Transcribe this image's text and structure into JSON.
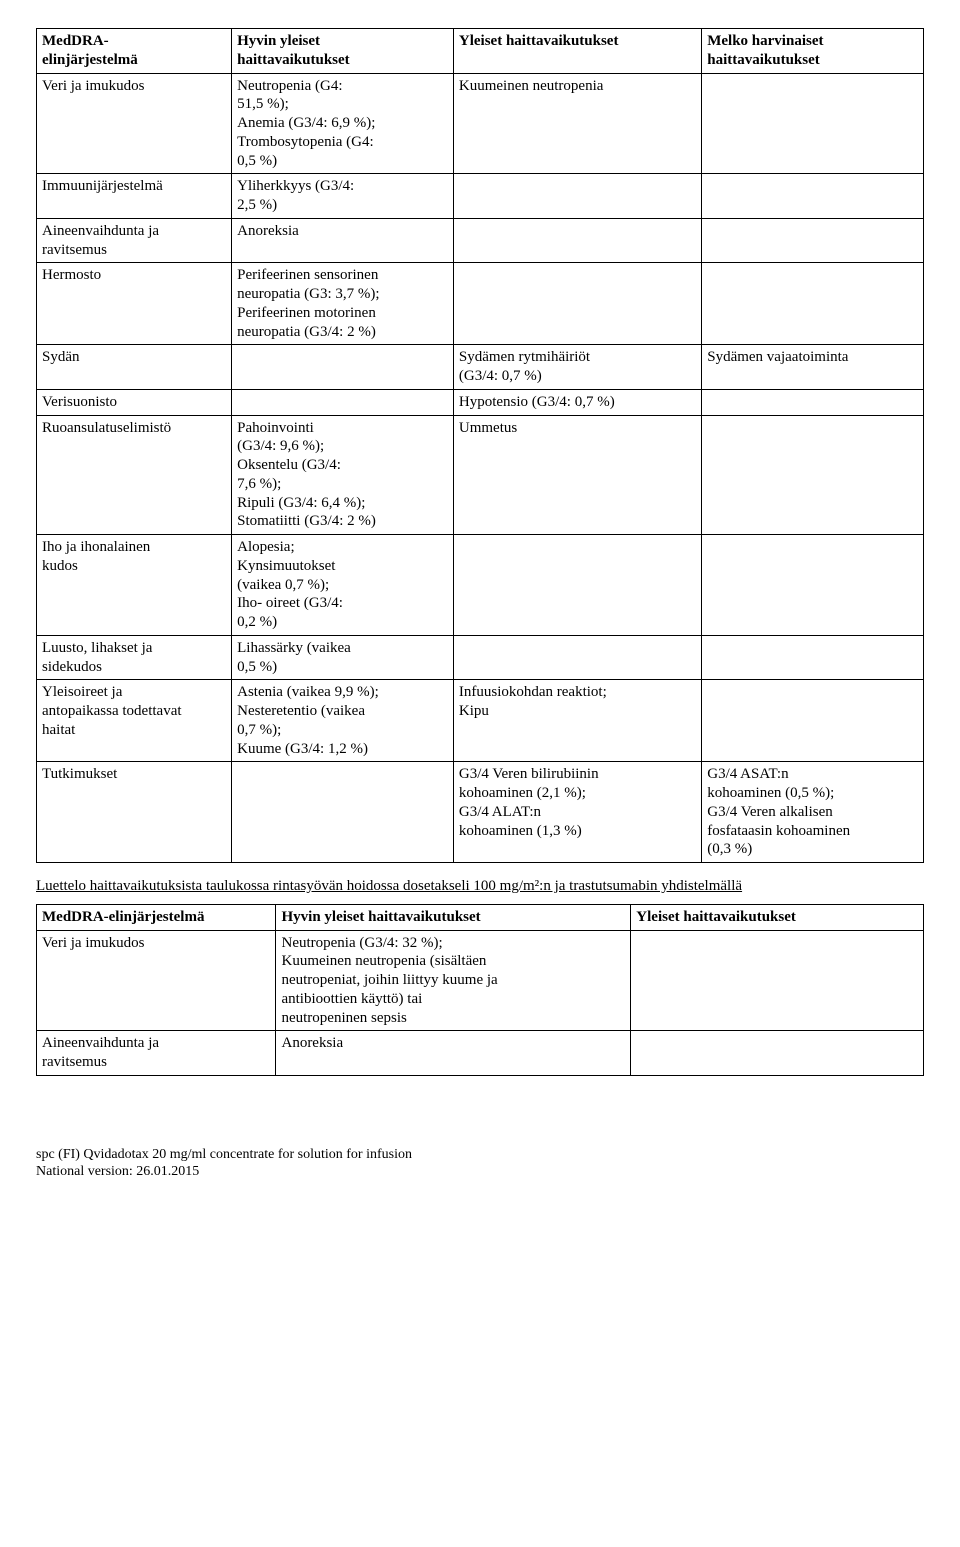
{
  "table1": {
    "headers": {
      "h1": "MedDRA-\nelinjärjestelmä",
      "h2": "Hyvin yleiset\nhaittavaikutukset",
      "h3": "Yleiset haittavaikutukset",
      "h4": "Melko harvinaiset\nhaittavaikutukset"
    },
    "rows": [
      {
        "c1": "Veri ja imukudos",
        "c2": "Neutropenia (G4:\n51,5 %);\nAnemia (G3/4: 6,9 %);\nTrombosytopenia (G4:\n0,5 %)",
        "c3": "Kuumeinen neutropenia",
        "c4": ""
      },
      {
        "c1": "Immuunijärjestelmä",
        "c2": "Yliherkkyys (G3/4:\n2,5 %)",
        "c3": "",
        "c4": ""
      },
      {
        "c1": "Aineenvaihdunta ja\nravitsemus",
        "c2": "Anoreksia",
        "c3": "",
        "c4": ""
      },
      {
        "c1": "Hermosto",
        "c2": "Perifeerinen sensorinen\nneuropatia (G3: 3,7 %);\nPerifeerinen motorinen\nneuropatia (G3/4: 2 %)",
        "c3": "",
        "c4": ""
      },
      {
        "c1": "Sydän",
        "c2": "",
        "c3": "Sydämen rytmihäiriöt\n(G3/4: 0,7 %)",
        "c4": "Sydämen vajaatoiminta"
      },
      {
        "c1": "Verisuonisto",
        "c2": "",
        "c3": "Hypotensio (G3/4: 0,7 %)",
        "c4": ""
      },
      {
        "c1": "Ruoansulatuselimistö",
        "c2": "Pahoinvointi\n(G3/4: 9,6 %);\nOksentelu (G3/4:\n7,6 %);\nRipuli (G3/4: 6,4 %);\nStomatiitti (G3/4: 2 %)",
        "c3": "Ummetus",
        "c4": ""
      },
      {
        "c1": "Iho ja ihonalainen\nkudos",
        "c2": "Alopesia;\nKynsimuutokset\n(vaikea 0,7 %);\nIho- oireet (G3/4:\n0,2 %)",
        "c3": "",
        "c4": ""
      },
      {
        "c1": "Luusto, lihakset ja\nsidekudos",
        "c2": "Lihassärky (vaikea\n0,5 %)",
        "c3": "",
        "c4": ""
      },
      {
        "c1": "Yleisoireet ja\nantopaikassa todettavat\nhaitat",
        "c2": "Astenia (vaikea 9,9 %);\nNesteretentio (vaikea\n0,7 %);\nKuume (G3/4: 1,2 %)",
        "c3": "Infuusiokohdan reaktiot;\nKipu",
        "c4": ""
      },
      {
        "c1": "Tutkimukset",
        "c2": "",
        "c3": "G3/4 Veren bilirubiinin\nkohoaminen (2,1 %);\nG3/4 ALAT:n\nkohoaminen (1,3 %)",
        "c4": "G3/4 ASAT:n\nkohoaminen (0,5 %);\nG3/4 Veren alkalisen\nfosfataasin kohoaminen\n(0,3 %)"
      }
    ]
  },
  "subhead": "Luettelo haittavaikutuksista taulukossa rintasyövän hoidossa dosetakseli 100 mg/m²:n ja trastutsumabin yhdistelmällä",
  "table2": {
    "headers": {
      "h1": "MedDRA-elinjärjestelmä",
      "h2": "Hyvin yleiset haittavaikutukset",
      "h3": "Yleiset haittavaikutukset"
    },
    "rows": [
      {
        "c1": "Veri ja imukudos",
        "c2": "Neutropenia (G3/4: 32 %);\nKuumeinen neutropenia (sisältäen\nneutropeniat, joihin liittyy kuume ja\nantibioottien käyttö) tai\nneutropeninen sepsis",
        "c3": ""
      },
      {
        "c1": "Aineenvaihdunta ja\nravitsemus",
        "c2": "Anoreksia",
        "c3": ""
      }
    ]
  },
  "footer": {
    "line1": "spc (FI) Qvidadotax 20 mg/ml concentrate for solution for infusion",
    "line2": "National version: 26.01.2015"
  }
}
